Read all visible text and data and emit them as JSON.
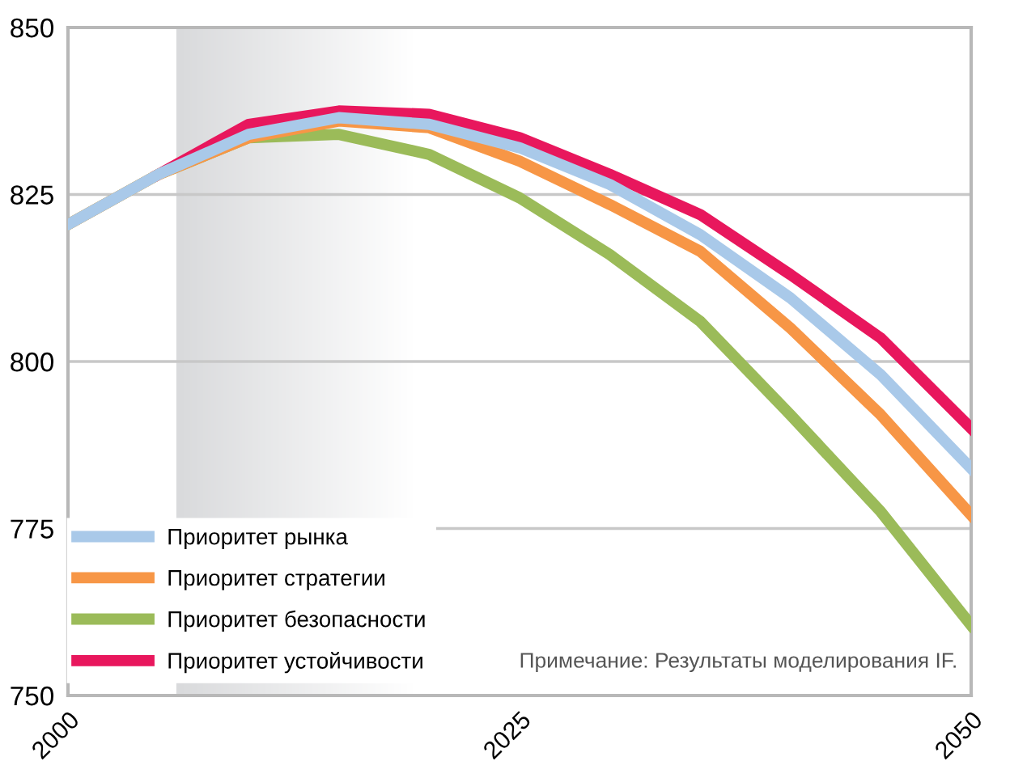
{
  "chart_data": {
    "type": "line",
    "x": [
      2000,
      2005,
      2010,
      2015,
      2020,
      2025,
      2030,
      2035,
      2040,
      2045,
      2050
    ],
    "series": [
      {
        "name": "Приоритет рынка",
        "color": "#a9c9e9",
        "values": [
          820.5,
          828,
          834,
          836.5,
          835.5,
          832,
          826.5,
          819,
          809.5,
          798,
          784
        ]
      },
      {
        "name": "Приоритет стратегии",
        "color": "#f79646",
        "values": [
          820.5,
          828,
          833.5,
          836,
          835,
          830,
          823.5,
          816.5,
          805,
          792,
          777
        ]
      },
      {
        "name": "Приоритет безопасности",
        "color": "#9bbb59",
        "values": [
          820.5,
          828,
          833.5,
          834,
          831,
          824.5,
          816,
          806,
          792,
          777.5,
          760.5
        ]
      },
      {
        "name": "Приоритет устойчивости",
        "color": "#e8175d",
        "values": [
          null,
          828,
          835.5,
          837.5,
          837,
          833.5,
          828,
          822,
          813,
          803.5,
          790
        ]
      }
    ],
    "xlim": [
      2000,
      2050
    ],
    "xticks": [
      2000,
      2025,
      2050
    ],
    "ylim": [
      750,
      850
    ],
    "yticks": [
      750,
      775,
      800,
      825,
      850
    ],
    "grid": "y",
    "legend": "bottom left",
    "marker": "none",
    "line_style": "solid",
    "bands": [
      {
        "axis": "x",
        "from": 2006,
        "to": 2019,
        "color": "#d9dadc"
      }
    ],
    "annotations": [
      "Примечание: Результаты моделирования IF."
    ]
  }
}
